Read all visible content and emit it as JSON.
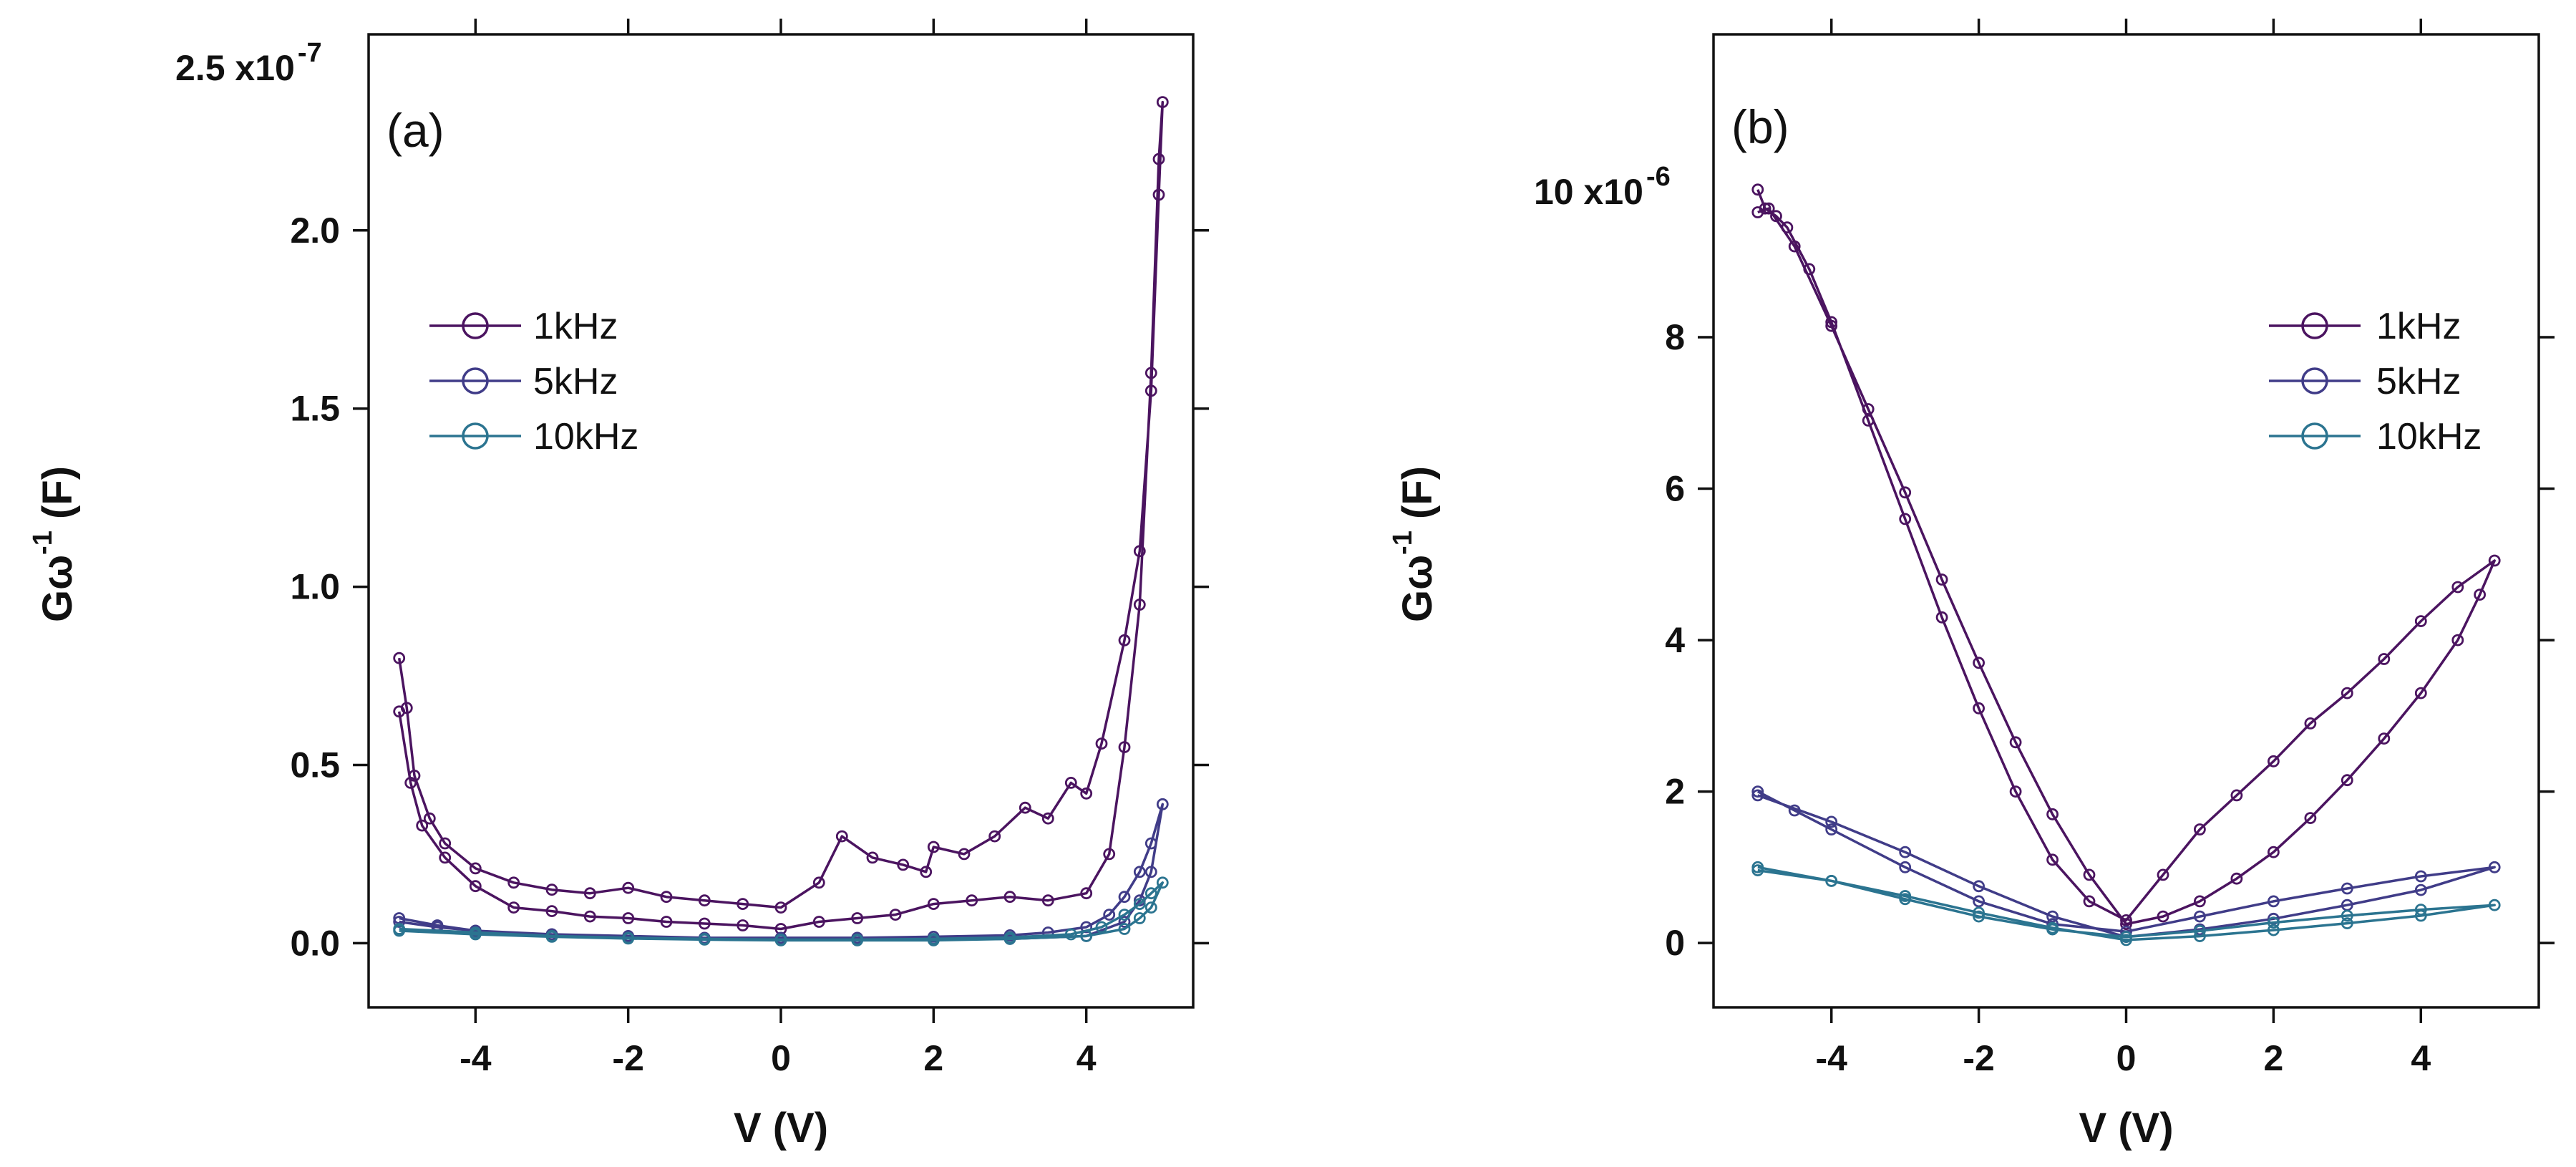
{
  "chart_data": [
    {
      "type": "line",
      "panel_label": "(a)",
      "ylabel_main": "Gω",
      "ylabel_exp": "-1",
      "ylabel_unit": "(F)",
      "xlabel": "V (V)",
      "xlim": [
        -5.4,
        5.4
      ],
      "ylim": [
        -0.18,
        2.55
      ],
      "y_scale_label": "2.5 x10",
      "y_scale_exp": "-7",
      "x_ticks": [
        -4,
        -2,
        0,
        2,
        4
      ],
      "x_tick_labels": [
        "-4",
        "-2",
        "0",
        "2",
        "4"
      ],
      "y_ticks": [
        0.0,
        0.5,
        1.0,
        1.5,
        2.0
      ],
      "y_tick_labels": [
        "0.0",
        "0.5",
        "1.0",
        "1.5",
        "2.0"
      ],
      "legend": [
        "1kHz",
        "5kHz",
        "10kHz"
      ],
      "series": [
        {
          "name": "1kHz",
          "color": "#4b1460",
          "points": [
            [
              -5.0,
              0.8
            ],
            [
              -4.9,
              0.66
            ],
            [
              -4.8,
              0.47
            ],
            [
              -4.6,
              0.35
            ],
            [
              -4.4,
              0.28
            ],
            [
              -4.0,
              0.21
            ],
            [
              -3.5,
              0.17
            ],
            [
              -3.0,
              0.15
            ],
            [
              -2.5,
              0.14
            ],
            [
              -2.0,
              0.155
            ],
            [
              -1.5,
              0.13
            ],
            [
              -1.0,
              0.12
            ],
            [
              -0.5,
              0.11
            ],
            [
              0.0,
              0.1
            ],
            [
              0.5,
              0.17
            ],
            [
              0.8,
              0.3
            ],
            [
              1.2,
              0.24
            ],
            [
              1.6,
              0.22
            ],
            [
              1.9,
              0.2
            ],
            [
              2.0,
              0.27
            ],
            [
              2.4,
              0.25
            ],
            [
              2.8,
              0.3
            ],
            [
              3.2,
              0.38
            ],
            [
              3.5,
              0.35
            ],
            [
              3.8,
              0.45
            ],
            [
              4.0,
              0.42
            ],
            [
              4.2,
              0.56
            ],
            [
              4.5,
              0.85
            ],
            [
              4.7,
              1.1
            ],
            [
              4.85,
              1.55
            ],
            [
              4.95,
              2.1
            ],
            [
              5.0,
              2.36
            ],
            [
              4.95,
              2.2
            ],
            [
              4.85,
              1.6
            ],
            [
              4.7,
              0.95
            ],
            [
              4.5,
              0.55
            ],
            [
              4.3,
              0.25
            ],
            [
              4.0,
              0.14
            ],
            [
              3.5,
              0.12
            ],
            [
              3.0,
              0.13
            ],
            [
              2.5,
              0.12
            ],
            [
              2.0,
              0.11
            ],
            [
              1.5,
              0.08
            ],
            [
              1.0,
              0.07
            ],
            [
              0.5,
              0.06
            ],
            [
              0.0,
              0.04
            ],
            [
              -0.5,
              0.05
            ],
            [
              -1.0,
              0.055
            ],
            [
              -1.5,
              0.06
            ],
            [
              -2.0,
              0.07
            ],
            [
              -2.5,
              0.075
            ],
            [
              -3.0,
              0.09
            ],
            [
              -3.5,
              0.1
            ],
            [
              -4.0,
              0.16
            ],
            [
              -4.4,
              0.24
            ],
            [
              -4.7,
              0.33
            ],
            [
              -4.85,
              0.45
            ],
            [
              -5.0,
              0.65
            ]
          ]
        },
        {
          "name": "5kHz",
          "color": "#403c88",
          "points": [
            [
              -5.0,
              0.07
            ],
            [
              -4.5,
              0.05
            ],
            [
              -4.0,
              0.035
            ],
            [
              -3.0,
              0.025
            ],
            [
              -2.0,
              0.02
            ],
            [
              -1.0,
              0.015
            ],
            [
              0.0,
              0.015
            ],
            [
              1.0,
              0.015
            ],
            [
              2.0,
              0.018
            ],
            [
              3.0,
              0.022
            ],
            [
              3.5,
              0.03
            ],
            [
              4.0,
              0.045
            ],
            [
              4.3,
              0.08
            ],
            [
              4.5,
              0.13
            ],
            [
              4.7,
              0.2
            ],
            [
              4.85,
              0.28
            ],
            [
              5.0,
              0.39
            ],
            [
              4.85,
              0.2
            ],
            [
              4.7,
              0.12
            ],
            [
              4.5,
              0.06
            ],
            [
              4.0,
              0.02
            ],
            [
              3.0,
              0.012
            ],
            [
              2.0,
              0.01
            ],
            [
              1.0,
              0.01
            ],
            [
              0.0,
              0.01
            ],
            [
              -1.0,
              0.012
            ],
            [
              -2.0,
              0.018
            ],
            [
              -3.0,
              0.025
            ],
            [
              -4.0,
              0.035
            ],
            [
              -4.5,
              0.045
            ],
            [
              -5.0,
              0.06
            ]
          ]
        },
        {
          "name": "10kHz",
          "color": "#2b7490",
          "points": [
            [
              -5.0,
              0.04
            ],
            [
              -4.0,
              0.03
            ],
            [
              -3.0,
              0.02
            ],
            [
              -2.0,
              0.015
            ],
            [
              -1.0,
              0.012
            ],
            [
              0.0,
              0.01
            ],
            [
              1.0,
              0.01
            ],
            [
              2.0,
              0.012
            ],
            [
              3.0,
              0.016
            ],
            [
              3.8,
              0.025
            ],
            [
              4.2,
              0.045
            ],
            [
              4.5,
              0.08
            ],
            [
              4.7,
              0.11
            ],
            [
              4.85,
              0.14
            ],
            [
              5.0,
              0.17
            ],
            [
              4.85,
              0.1
            ],
            [
              4.7,
              0.07
            ],
            [
              4.5,
              0.04
            ],
            [
              4.0,
              0.02
            ],
            [
              3.0,
              0.012
            ],
            [
              2.0,
              0.008
            ],
            [
              1.0,
              0.008
            ],
            [
              0.0,
              0.008
            ],
            [
              -1.0,
              0.01
            ],
            [
              -2.0,
              0.013
            ],
            [
              -3.0,
              0.018
            ],
            [
              -4.0,
              0.025
            ],
            [
              -5.0,
              0.035
            ]
          ]
        }
      ]
    },
    {
      "type": "line",
      "panel_label": "(b)",
      "ylabel_main": "Gω",
      "ylabel_exp": "-1",
      "ylabel_unit": "(F)",
      "xlabel": "V (V)",
      "xlim": [
        -5.6,
        5.6
      ],
      "ylim": [
        -0.85,
        12.0
      ],
      "y_scale_label": "10 x10",
      "y_scale_exp": "-6",
      "x_ticks": [
        -4,
        -2,
        0,
        2,
        4
      ],
      "x_tick_labels": [
        "-4",
        "-2",
        "0",
        "2",
        "4"
      ],
      "y_ticks": [
        0,
        2,
        4,
        6,
        8
      ],
      "y_tick_labels": [
        "0",
        "2",
        "4",
        "6",
        "8"
      ],
      "legend": [
        "1kHz",
        "5kHz",
        "10kHz"
      ],
      "series": [
        {
          "name": "1kHz",
          "color": "#4b1460",
          "points": [
            [
              -5.0,
              9.95
            ],
            [
              -4.9,
              9.7
            ],
            [
              -4.75,
              9.6
            ],
            [
              -4.6,
              9.45
            ],
            [
              -4.3,
              8.9
            ],
            [
              -4.0,
              8.2
            ],
            [
              -3.5,
              6.9
            ],
            [
              -3.0,
              5.6
            ],
            [
              -2.5,
              4.3
            ],
            [
              -2.0,
              3.1
            ],
            [
              -1.5,
              2.0
            ],
            [
              -1.0,
              1.1
            ],
            [
              -0.5,
              0.55
            ],
            [
              0.0,
              0.3
            ],
            [
              0.5,
              0.9
            ],
            [
              1.0,
              1.5
            ],
            [
              1.5,
              1.95
            ],
            [
              2.0,
              2.4
            ],
            [
              2.5,
              2.9
            ],
            [
              3.0,
              3.3
            ],
            [
              3.5,
              3.75
            ],
            [
              4.0,
              4.25
            ],
            [
              4.5,
              4.7
            ],
            [
              5.0,
              5.05
            ],
            [
              4.8,
              4.6
            ],
            [
              4.5,
              4.0
            ],
            [
              4.0,
              3.3
            ],
            [
              3.5,
              2.7
            ],
            [
              3.0,
              2.15
            ],
            [
              2.5,
              1.65
            ],
            [
              2.0,
              1.2
            ],
            [
              1.5,
              0.85
            ],
            [
              1.0,
              0.55
            ],
            [
              0.5,
              0.35
            ],
            [
              0.0,
              0.25
            ],
            [
              -0.5,
              0.9
            ],
            [
              -1.0,
              1.7
            ],
            [
              -1.5,
              2.65
            ],
            [
              -2.0,
              3.7
            ],
            [
              -2.5,
              4.8
            ],
            [
              -3.0,
              5.95
            ],
            [
              -3.5,
              7.05
            ],
            [
              -4.0,
              8.15
            ],
            [
              -4.5,
              9.2
            ],
            [
              -4.85,
              9.7
            ],
            [
              -5.0,
              9.65
            ]
          ]
        },
        {
          "name": "5kHz",
          "color": "#403c88",
          "points": [
            [
              -5.0,
              2.0
            ],
            [
              -4.5,
              1.75
            ],
            [
              -4.0,
              1.5
            ],
            [
              -3.0,
              1.0
            ],
            [
              -2.0,
              0.55
            ],
            [
              -1.0,
              0.25
            ],
            [
              0.0,
              0.15
            ],
            [
              1.0,
              0.35
            ],
            [
              2.0,
              0.55
            ],
            [
              3.0,
              0.72
            ],
            [
              4.0,
              0.88
            ],
            [
              5.0,
              1.0
            ],
            [
              4.0,
              0.7
            ],
            [
              3.0,
              0.5
            ],
            [
              2.0,
              0.32
            ],
            [
              1.0,
              0.18
            ],
            [
              0.0,
              0.08
            ],
            [
              -1.0,
              0.35
            ],
            [
              -2.0,
              0.75
            ],
            [
              -3.0,
              1.2
            ],
            [
              -4.0,
              1.6
            ],
            [
              -5.0,
              1.95
            ]
          ]
        },
        {
          "name": "10kHz",
          "color": "#2b7490",
          "points": [
            [
              -5.0,
              1.0
            ],
            [
              -4.0,
              0.82
            ],
            [
              -3.0,
              0.58
            ],
            [
              -2.0,
              0.35
            ],
            [
              -1.0,
              0.18
            ],
            [
              0.0,
              0.08
            ],
            [
              1.0,
              0.16
            ],
            [
              2.0,
              0.27
            ],
            [
              3.0,
              0.36
            ],
            [
              4.0,
              0.44
            ],
            [
              5.0,
              0.5
            ],
            [
              4.0,
              0.36
            ],
            [
              3.0,
              0.26
            ],
            [
              2.0,
              0.17
            ],
            [
              1.0,
              0.09
            ],
            [
              0.0,
              0.04
            ],
            [
              -1.0,
              0.2
            ],
            [
              -2.0,
              0.4
            ],
            [
              -3.0,
              0.62
            ],
            [
              -4.0,
              0.82
            ],
            [
              -5.0,
              0.96
            ]
          ]
        }
      ]
    }
  ]
}
